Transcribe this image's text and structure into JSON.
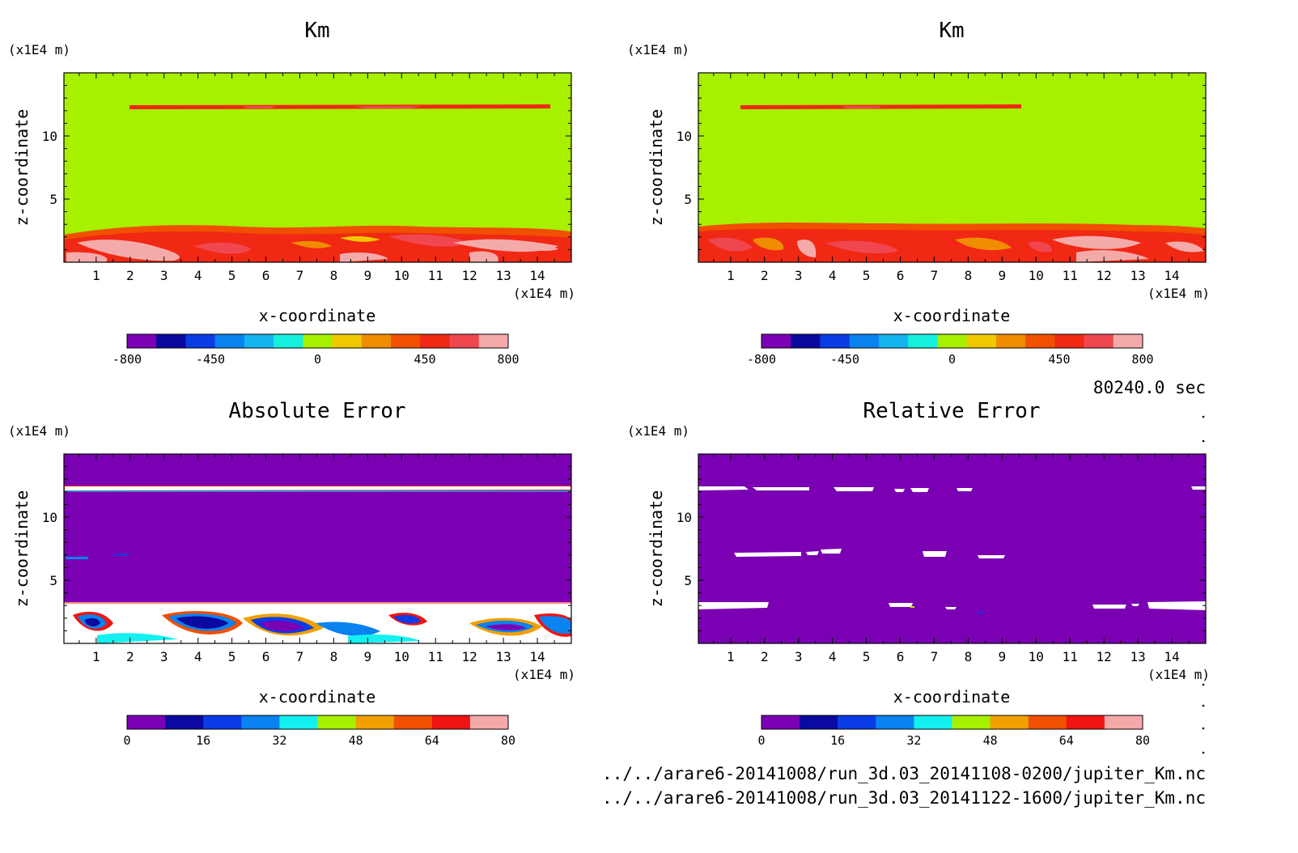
{
  "time_label": "80240.0 sec",
  "file_lines": [
    "../../arare6-20141008/run_3d.03_20141108-0200/jupiter_Km.nc",
    "../../arare6-20141008/run_3d.03_20141122-1600/jupiter_Km.nc"
  ],
  "colors": {
    "km_palette": [
      "#7b00b4",
      "#0a0aa0",
      "#0a3ce6",
      "#0a82f0",
      "#14b4f0",
      "#14f0dc",
      "#a6f000",
      "#f0c800",
      "#f08c00",
      "#f05000",
      "#f02814",
      "#f04650",
      "#f5aaaa"
    ],
    "err_palette": [
      "#7b00b4",
      "#0a0aa0",
      "#0a3ce6",
      "#0a82f0",
      "#14f0f0",
      "#a6f000",
      "#f0a000",
      "#f05000",
      "#f01414",
      "#f5aaaa"
    ]
  },
  "chart_data": [
    {
      "type": "heatmap",
      "title": "Km",
      "xlabel": "x-coordinate",
      "ylabel": "z-coordinate",
      "x_unit": "(x1E4 m)",
      "y_unit": "(x1E4 m)",
      "x_ticks": [
        1,
        2,
        3,
        4,
        5,
        6,
        7,
        8,
        9,
        10,
        11,
        12,
        13,
        14
      ],
      "y_ticks": [
        5,
        10
      ],
      "xlim": [
        0.05,
        15.0
      ],
      "ylim": [
        0,
        15.0
      ],
      "colorbar": {
        "min": -800,
        "max": 800,
        "tick_labels": [
          "-800",
          "-450",
          "0",
          "450",
          "800"
        ]
      },
      "background_value": 0,
      "layers": [
        {
          "region": "boundary layer near bottom",
          "z_top": 2.8,
          "value_range": [
            450,
            800
          ]
        },
        {
          "region": "thin band near top",
          "z": 12.2,
          "value_range": [
            450,
            650
          ]
        }
      ]
    },
    {
      "type": "heatmap",
      "title": "Km",
      "xlabel": "x-coordinate",
      "ylabel": "z-coordinate",
      "x_unit": "(x1E4 m)",
      "y_unit": "(x1E4 m)",
      "x_ticks": [
        1,
        2,
        3,
        4,
        5,
        6,
        7,
        8,
        9,
        10,
        11,
        12,
        13,
        14
      ],
      "y_ticks": [
        5,
        10
      ],
      "xlim": [
        0.05,
        15.0
      ],
      "ylim": [
        0,
        15.0
      ],
      "colorbar": {
        "min": -800,
        "max": 800,
        "tick_labels": [
          "-800",
          "-450",
          "0",
          "450",
          "800"
        ]
      },
      "background_value": 0,
      "layers": [
        {
          "region": "boundary layer near bottom",
          "z_top": 2.9,
          "value_range": [
            450,
            800
          ]
        },
        {
          "region": "thin band near top",
          "z": 12.2,
          "value_range": [
            450,
            650
          ]
        }
      ]
    },
    {
      "type": "heatmap",
      "title": "Absolute Error",
      "xlabel": "x-coordinate",
      "ylabel": "z-coordinate",
      "x_unit": "(x1E4 m)",
      "y_unit": "(x1E4 m)",
      "x_ticks": [
        1,
        2,
        3,
        4,
        5,
        6,
        7,
        8,
        9,
        10,
        11,
        12,
        13,
        14
      ],
      "y_ticks": [
        5,
        10
      ],
      "xlim": [
        0.05,
        15.0
      ],
      "ylim": [
        0,
        15.0
      ],
      "colorbar": {
        "min": 0,
        "max": 80,
        "tick_labels": [
          "0",
          "16",
          "32",
          "48",
          "64",
          "80"
        ]
      },
      "background_value": 0,
      "layers": [
        {
          "region": "bottom layer, mostly above 80",
          "z_top": 3.2,
          "value_range": [
            0,
            80
          ]
        },
        {
          "region": "band near top, above 80",
          "z": 12.2
        }
      ]
    },
    {
      "type": "heatmap",
      "title": "Relative Error",
      "xlabel": "x-coordinate",
      "ylabel": "z-coordinate",
      "x_unit": "(x1E4 m)",
      "y_unit": "(x1E4 m)",
      "x_ticks": [
        1,
        2,
        3,
        4,
        5,
        6,
        7,
        8,
        9,
        10,
        11,
        12,
        13,
        14
      ],
      "y_ticks": [
        5,
        10
      ],
      "xlim": [
        0.05,
        15.0
      ],
      "ylim": [
        0,
        15.0
      ],
      "colorbar": {
        "min": 0,
        "max": 80,
        "tick_labels": [
          "0",
          "16",
          "32",
          "48",
          "64",
          "80"
        ]
      },
      "background_value": 0,
      "layers": [
        {
          "region": "scattered patches above 80",
          "z_levels": [
            12.2,
            7.0,
            3.0
          ]
        }
      ]
    }
  ]
}
